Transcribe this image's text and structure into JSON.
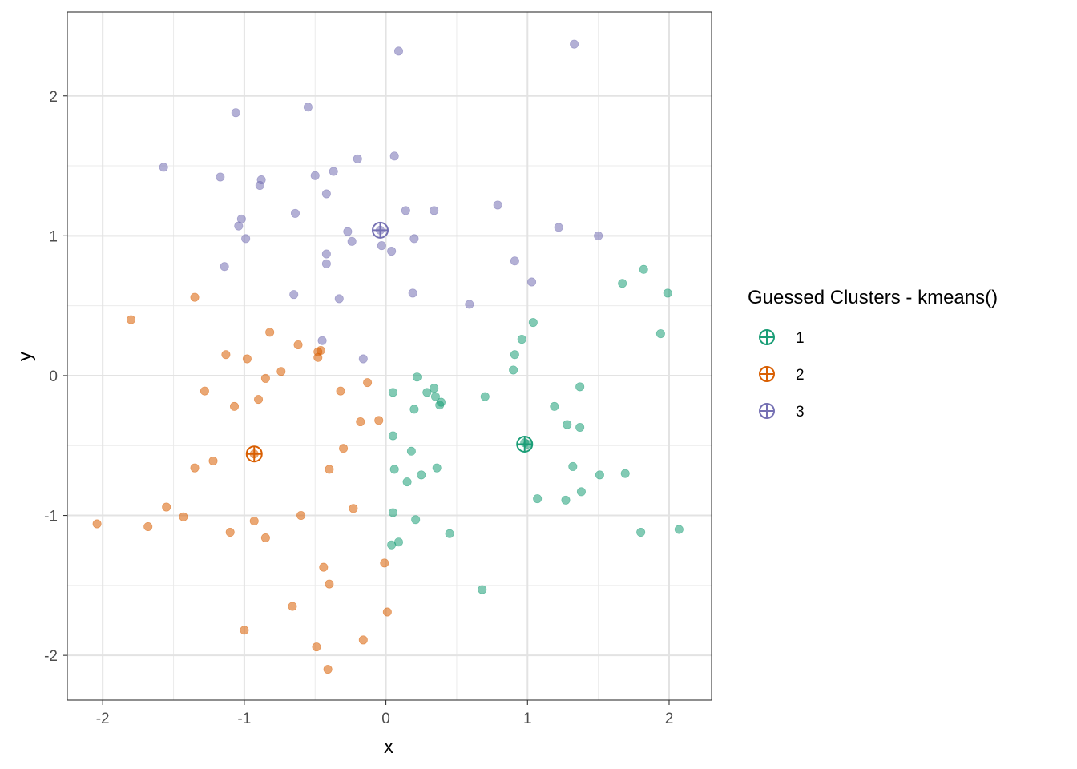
{
  "chart_data": {
    "type": "scatter",
    "title": "",
    "xlabel": "x",
    "ylabel": "y",
    "xlim": [
      -2.25,
      2.3
    ],
    "ylim": [
      -2.32,
      2.6
    ],
    "x_ticks": [
      -2,
      -1,
      0,
      1,
      2
    ],
    "y_ticks": [
      -2,
      -1,
      0,
      1,
      2
    ],
    "x_tick_labels": [
      "-2",
      "-1",
      "0",
      "1",
      "2"
    ],
    "y_tick_labels": [
      "-2",
      "-1",
      "0",
      "1",
      "2"
    ],
    "grid": true,
    "legend": {
      "title": "Guessed Clusters - kmeans()",
      "position": "right",
      "entries": [
        "1",
        "2",
        "3"
      ]
    },
    "series": [
      {
        "name": "1",
        "color": "#1b9e77",
        "centroid": [
          0.98,
          -0.49
        ],
        "points": [
          [
            0.22,
            -0.01
          ],
          [
            0.05,
            -0.12
          ],
          [
            0.29,
            -0.12
          ],
          [
            0.34,
            -0.09
          ],
          [
            0.35,
            -0.15
          ],
          [
            0.38,
            -0.21
          ],
          [
            0.39,
            -0.19
          ],
          [
            0.2,
            -0.24
          ],
          [
            0.7,
            -0.15
          ],
          [
            0.9,
            0.04
          ],
          [
            0.91,
            0.15
          ],
          [
            0.96,
            0.26
          ],
          [
            1.04,
            0.38
          ],
          [
            1.67,
            0.66
          ],
          [
            1.82,
            0.76
          ],
          [
            1.99,
            0.59
          ],
          [
            1.94,
            0.3
          ],
          [
            1.37,
            -0.08
          ],
          [
            1.19,
            -0.22
          ],
          [
            1.28,
            -0.35
          ],
          [
            1.37,
            -0.37
          ],
          [
            0.05,
            -0.43
          ],
          [
            0.18,
            -0.54
          ],
          [
            0.06,
            -0.67
          ],
          [
            0.36,
            -0.66
          ],
          [
            0.15,
            -0.76
          ],
          [
            0.25,
            -0.71
          ],
          [
            1.0,
            -0.49
          ],
          [
            0.98,
            -0.48
          ],
          [
            1.32,
            -0.65
          ],
          [
            1.51,
            -0.71
          ],
          [
            1.69,
            -0.7
          ],
          [
            1.07,
            -0.88
          ],
          [
            1.27,
            -0.89
          ],
          [
            1.38,
            -0.83
          ],
          [
            0.05,
            -0.98
          ],
          [
            0.21,
            -1.03
          ],
          [
            0.45,
            -1.13
          ],
          [
            0.09,
            -1.19
          ],
          [
            0.04,
            -1.21
          ],
          [
            0.68,
            -1.53
          ],
          [
            1.8,
            -1.12
          ],
          [
            2.07,
            -1.1
          ]
        ]
      },
      {
        "name": "2",
        "color": "#d95f02",
        "centroid": [
          -0.93,
          -0.56
        ],
        "points": [
          [
            -1.35,
            0.56
          ],
          [
            -1.8,
            0.4
          ],
          [
            -0.82,
            0.31
          ],
          [
            -0.62,
            0.22
          ],
          [
            -1.13,
            0.15
          ],
          [
            -0.98,
            0.12
          ],
          [
            -0.48,
            0.17
          ],
          [
            -0.46,
            0.18
          ],
          [
            -0.48,
            0.13
          ],
          [
            -0.74,
            0.03
          ],
          [
            -0.85,
            -0.02
          ],
          [
            -0.13,
            -0.05
          ],
          [
            -1.28,
            -0.11
          ],
          [
            -0.32,
            -0.11
          ],
          [
            -0.9,
            -0.17
          ],
          [
            -1.07,
            -0.22
          ],
          [
            -0.18,
            -0.33
          ],
          [
            -0.05,
            -0.32
          ],
          [
            -0.3,
            -0.52
          ],
          [
            -0.93,
            -0.56
          ],
          [
            -1.22,
            -0.61
          ],
          [
            -1.35,
            -0.66
          ],
          [
            -0.4,
            -0.67
          ],
          [
            -1.55,
            -0.94
          ],
          [
            -0.23,
            -0.95
          ],
          [
            -1.43,
            -1.01
          ],
          [
            -0.6,
            -1.0
          ],
          [
            -2.04,
            -1.06
          ],
          [
            -1.68,
            -1.08
          ],
          [
            -0.93,
            -1.04
          ],
          [
            -1.1,
            -1.12
          ],
          [
            -0.85,
            -1.16
          ],
          [
            -0.01,
            -1.34
          ],
          [
            -0.44,
            -1.37
          ],
          [
            -0.4,
            -1.49
          ],
          [
            -0.66,
            -1.65
          ],
          [
            0.01,
            -1.69
          ],
          [
            -1.0,
            -1.82
          ],
          [
            -0.16,
            -1.89
          ],
          [
            -0.49,
            -1.94
          ],
          [
            -0.41,
            -2.1
          ]
        ]
      },
      {
        "name": "3",
        "color": "#7570b3",
        "centroid": [
          -0.04,
          1.04
        ],
        "points": [
          [
            0.09,
            2.32
          ],
          [
            1.33,
            2.37
          ],
          [
            -1.06,
            1.88
          ],
          [
            -0.55,
            1.92
          ],
          [
            -1.57,
            1.49
          ],
          [
            -0.2,
            1.55
          ],
          [
            0.06,
            1.57
          ],
          [
            -1.17,
            1.42
          ],
          [
            -0.5,
            1.43
          ],
          [
            -0.37,
            1.46
          ],
          [
            -0.88,
            1.4
          ],
          [
            -0.89,
            1.36
          ],
          [
            -0.42,
            1.3
          ],
          [
            0.14,
            1.18
          ],
          [
            0.34,
            1.18
          ],
          [
            0.79,
            1.22
          ],
          [
            -0.64,
            1.16
          ],
          [
            -1.02,
            1.12
          ],
          [
            -1.04,
            1.07
          ],
          [
            1.22,
            1.06
          ],
          [
            -0.27,
            1.03
          ],
          [
            -0.04,
            1.04
          ],
          [
            -0.99,
            0.98
          ],
          [
            -0.24,
            0.96
          ],
          [
            0.2,
            0.98
          ],
          [
            1.5,
            1.0
          ],
          [
            -0.03,
            0.93
          ],
          [
            0.04,
            0.89
          ],
          [
            -0.42,
            0.87
          ],
          [
            -0.42,
            0.8
          ],
          [
            -1.14,
            0.78
          ],
          [
            0.91,
            0.82
          ],
          [
            1.03,
            0.67
          ],
          [
            -0.65,
            0.58
          ],
          [
            -0.33,
            0.55
          ],
          [
            0.19,
            0.59
          ],
          [
            0.59,
            0.51
          ],
          [
            -0.45,
            0.25
          ],
          [
            -0.16,
            0.12
          ]
        ]
      }
    ]
  }
}
